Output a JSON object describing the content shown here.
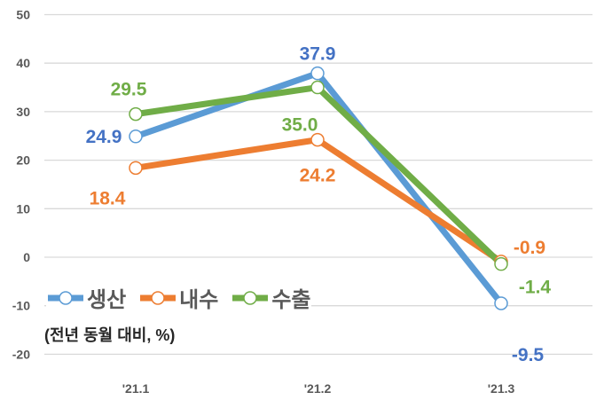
{
  "chart_data": {
    "type": "line",
    "categories": [
      "'21.1",
      "'21.2",
      "'21.3"
    ],
    "series": [
      {
        "name": "생산",
        "values": [
          24.9,
          37.9,
          -9.5
        ],
        "color": "#5B9BD5",
        "label_color": "#4472C4"
      },
      {
        "name": "내수",
        "values": [
          18.4,
          24.2,
          -0.9
        ],
        "color": "#ED7D31",
        "label_color": "#ED7D31"
      },
      {
        "name": "수출",
        "values": [
          29.5,
          35.0,
          -1.4
        ],
        "color": "#70AD47",
        "label_color": "#70AD47"
      }
    ],
    "yticks": [
      50,
      40,
      30,
      20,
      10,
      0,
      -10,
      -20
    ],
    "ylim": [
      -20,
      50
    ],
    "grid": true,
    "legend_position": "bottom-left",
    "annotation": "(전년 동월 대비, %)"
  }
}
